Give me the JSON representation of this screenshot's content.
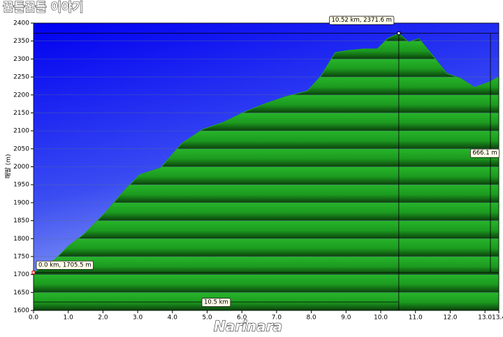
{
  "watermark": "꿈틀꿈틀 이야기",
  "footer_watermark": "Narinara",
  "chart_data": {
    "type": "area",
    "ylabel": "해발 (m)",
    "x": [
      0.0,
      0.24,
      0.64,
      1.0,
      1.45,
      2.05,
      2.66,
      3.06,
      3.66,
      4.27,
      4.87,
      5.47,
      6.08,
      6.68,
      7.28,
      7.89,
      8.29,
      8.69,
      9.09,
      9.5,
      9.9,
      10.2,
      10.52,
      10.8,
      11.1,
      11.5,
      11.9,
      12.3,
      12.7,
      13.1,
      13.4
    ],
    "series": [
      {
        "name": "해발",
        "color": "#1fa51f",
        "values": [
          1705.5,
          1719,
          1744,
          1779,
          1812,
          1871,
          1939,
          1978,
          1997,
          2065,
          2104,
          2124,
          2153,
          2176,
          2196,
          2211,
          2254,
          2318,
          2324,
          2328,
          2328,
          2357,
          2371.6,
          2347,
          2357,
          2309,
          2260,
          2246,
          2221,
          2235,
          2250
        ]
      }
    ],
    "xlim": [
      0,
      13.4
    ],
    "ylim": [
      1600,
      2400
    ],
    "xticks": [
      {
        "value": 0,
        "label": "0.0"
      },
      {
        "value": 1,
        "label": "1.0"
      },
      {
        "value": 2,
        "label": "2.0"
      },
      {
        "value": 3,
        "label": "3.0"
      },
      {
        "value": 4,
        "label": "4.0"
      },
      {
        "value": 5,
        "label": "5.0"
      },
      {
        "value": 6,
        "label": "6.0"
      },
      {
        "value": 7,
        "label": "7.0"
      },
      {
        "value": 8,
        "label": "8.0"
      },
      {
        "value": 9,
        "label": "9.0"
      },
      {
        "value": 10,
        "label": "10.0"
      },
      {
        "value": 11,
        "label": "11.0"
      },
      {
        "value": 12,
        "label": "12.0"
      },
      {
        "value": 13,
        "label": "13.0"
      },
      13.4
    ],
    "yticks": [
      1600,
      1650,
      1700,
      1750,
      1800,
      1850,
      1900,
      1950,
      2000,
      2050,
      2100,
      2150,
      2200,
      2250,
      2300,
      2350,
      2400
    ],
    "grid": true,
    "annotations": {
      "start": "0.0 km, 1705.5 m",
      "peak": "10.52 km, 2371.6 m",
      "gain": "666.1 m",
      "distance": "10.5 km"
    }
  }
}
